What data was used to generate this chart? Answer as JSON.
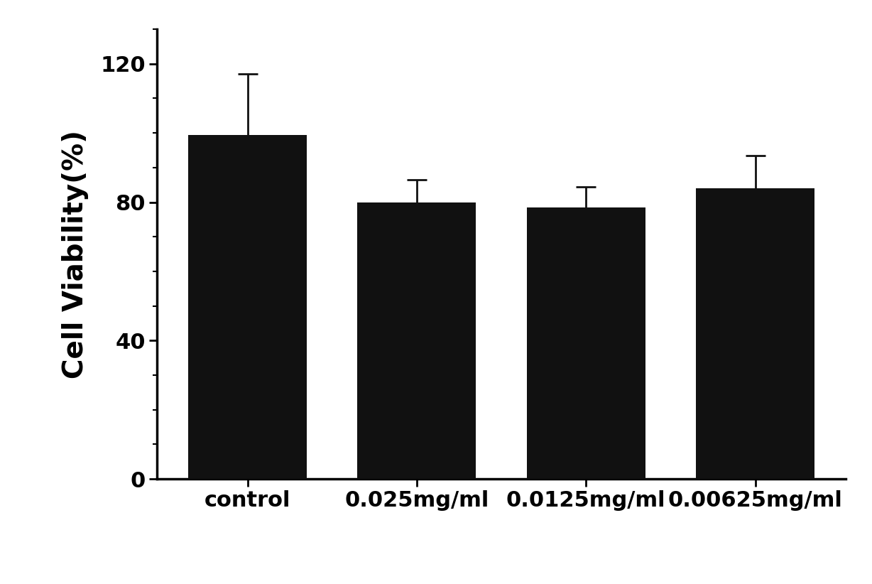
{
  "categories": [
    "control",
    "0.025mg/ml",
    "0.0125mg/ml",
    "0.00625mg/ml"
  ],
  "values": [
    99.5,
    80.0,
    78.5,
    84.0
  ],
  "errors": [
    17.5,
    6.5,
    6.0,
    9.5
  ],
  "bar_color": "#111111",
  "bar_width": 0.7,
  "ylabel": "Cell Viability(%)",
  "ylim": [
    0,
    130
  ],
  "yticks": [
    0,
    40,
    80,
    120
  ],
  "background_color": "#ffffff",
  "ylabel_fontsize": 28,
  "tick_fontsize": 22,
  "xlabel_fontsize": 22,
  "error_capsize": 10,
  "error_linewidth": 2.0,
  "spine_linewidth": 2.5
}
